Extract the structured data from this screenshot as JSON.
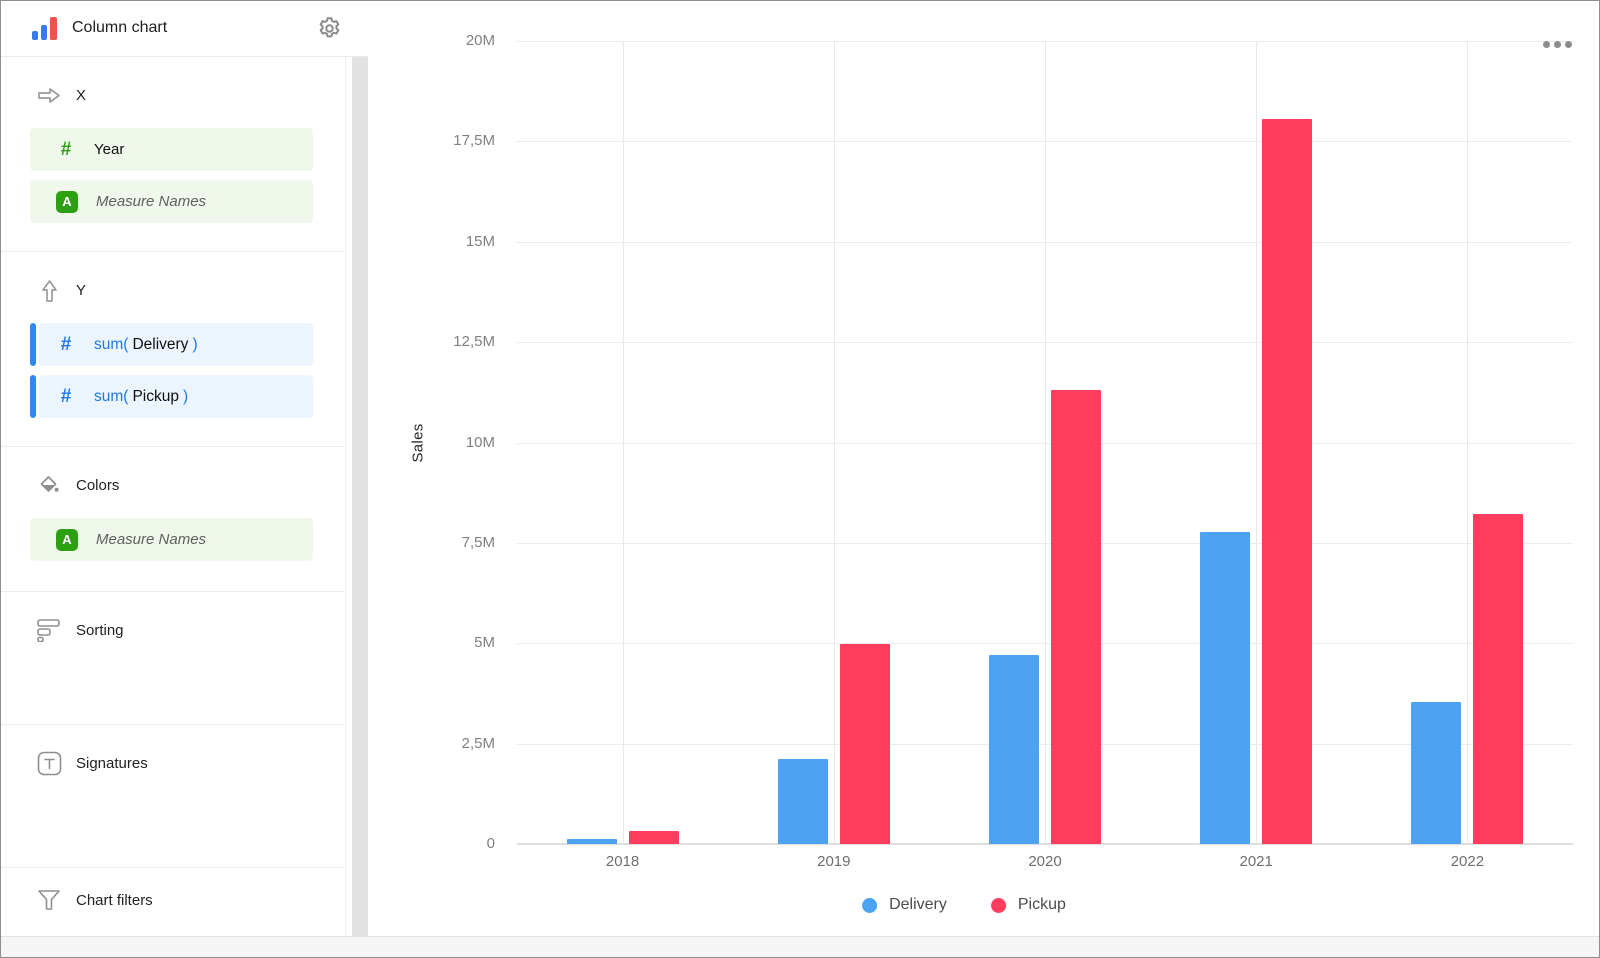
{
  "header": {
    "title": "Column chart"
  },
  "icons": {
    "hash": "#",
    "measure_badge": "A",
    "list": [
      "bar-chart-icon",
      "gear-icon",
      "arrow-right-icon",
      "arrow-up-icon",
      "paint-bucket-icon",
      "sorting-bars-icon",
      "text-box-icon",
      "funnel-icon",
      "ellipsis-icon"
    ]
  },
  "sidebar": {
    "x": {
      "label": "X",
      "pills": [
        {
          "label": "Year"
        },
        {
          "label": "Measure Names"
        }
      ]
    },
    "y": {
      "label": "Y",
      "pills": [
        {
          "prefix": "sum(",
          "name": "Delivery",
          "suffix": ")"
        },
        {
          "prefix": "sum(",
          "name": "Pickup",
          "suffix": ")"
        }
      ]
    },
    "colors": {
      "label": "Colors",
      "pills": [
        {
          "label": "Measure Names"
        }
      ]
    },
    "sorting": {
      "label": "Sorting"
    },
    "signatures": {
      "label": "Signatures"
    },
    "filters": {
      "label": "Chart filters"
    }
  },
  "chart_data": {
    "type": "bar",
    "title": "",
    "categories": [
      "2018",
      "2019",
      "2020",
      "2021",
      "2022"
    ],
    "series": [
      {
        "name": "Delivery",
        "color": "#4DA2F1",
        "values": [
          120000,
          2110000,
          4700000,
          7780000,
          3530000
        ]
      },
      {
        "name": "Pickup",
        "color": "#FC3D5E",
        "values": [
          330000,
          4970000,
          11310000,
          18060000,
          8230000
        ]
      }
    ],
    "xlabel": "",
    "ylabel": "Sales",
    "ylim": [
      0,
      20000000
    ],
    "yticks": [
      0,
      2500000,
      5000000,
      7500000,
      10000000,
      12500000,
      15000000,
      17500000,
      20000000
    ],
    "ytick_labels": [
      "0",
      "2,5M",
      "5M",
      "7,5M",
      "10M",
      "12,5M",
      "15M",
      "17,5M",
      "20M"
    ],
    "grid": true,
    "legend_position": "bottom"
  }
}
